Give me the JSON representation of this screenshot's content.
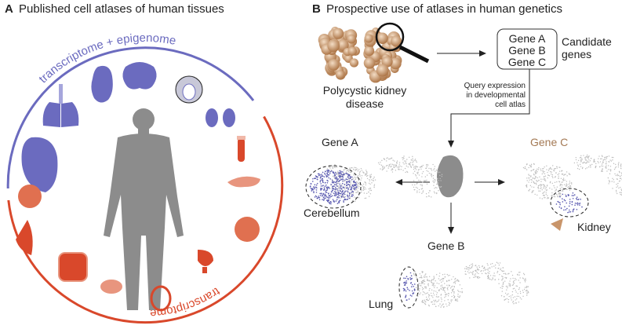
{
  "panel_a": {
    "letter": "A",
    "title": "Published cell atlases of human tissues",
    "arc_top_label": "transcriptome + epigenome",
    "arc_bottom_label": "transcriptome",
    "colors": {
      "epigenome": "#6b6bbf",
      "transcriptome": "#d9482b",
      "body": "#8c8c8c"
    },
    "tissue_icons_blue": [
      "heart-icon",
      "lung-icon",
      "embryo-icon",
      "brain-icon",
      "thymus-icon",
      "kidney-icon"
    ],
    "tissue_icons_red": [
      "blood-tube-icon",
      "pancreas-icon",
      "eye-icon",
      "bladder-icon",
      "vessel-icon",
      "placenta-icon",
      "intestine-icon",
      "breast-icon",
      "liver-icon"
    ]
  },
  "panel_b": {
    "letter": "B",
    "title": "Prospective use of atlases in human genetics",
    "disease_label": "Polycystic kidney disease",
    "genes": [
      "Gene A",
      "Gene B",
      "Gene C"
    ],
    "candidate_label_1": "Candidate",
    "candidate_label_2": "genes",
    "query_lines": [
      "Query expression",
      "in developmental",
      "cell atlas"
    ],
    "gene_a": {
      "label": "Gene A",
      "region": "Cerebellum"
    },
    "gene_b": {
      "label": "Gene B",
      "region": "Lung"
    },
    "gene_c": {
      "label": "Gene C",
      "region": "Kidney"
    },
    "colors": {
      "kidney": "#b07a4a",
      "gene_c": "#a47a55",
      "expression": "#5a5ab0",
      "cells": "#bdbdbd"
    }
  }
}
